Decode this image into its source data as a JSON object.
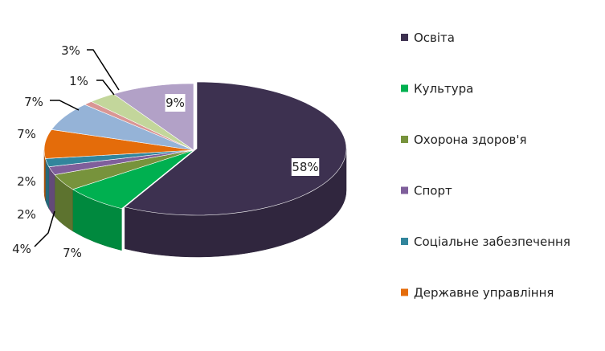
{
  "chart_data": {
    "type": "pie",
    "style": "3d-exploded",
    "legend_position": "right",
    "slices": [
      {
        "label": "Освіта",
        "value": 58,
        "value_label": "58%",
        "color": "#3d3150"
      },
      {
        "label": "",
        "value": 7,
        "value_label": "7%",
        "color": "#00b050"
      },
      {
        "label": "",
        "value": 4,
        "value_label": "4%",
        "color": "#77933c"
      },
      {
        "label": "",
        "value": 2,
        "value_label": "2%",
        "color": "#7f5f9b"
      },
      {
        "label": "",
        "value": 2,
        "value_label": "2%",
        "color": "#31859c"
      },
      {
        "label": "",
        "value": 7,
        "value_label": "7%",
        "color": "#e46c0a"
      },
      {
        "label": "",
        "value": 7,
        "value_label": "7%",
        "color": "#95b3d7"
      },
      {
        "label": "",
        "value": 1,
        "value_label": "1%",
        "color": "#d99694"
      },
      {
        "label": "",
        "value": 3,
        "value_label": "3%",
        "color": "#c3d69b"
      },
      {
        "label": "",
        "value": 9,
        "value_label": "9%",
        "color": "#b2a1c7"
      }
    ],
    "legend": [
      {
        "label": "Освіта",
        "color": "#3d3150"
      },
      {
        "label": "Культура",
        "color": "#00b050"
      },
      {
        "label": "Охорона здоров'я",
        "color": "#77933c"
      },
      {
        "label": "Спорт",
        "color": "#7f5f9b"
      },
      {
        "label": "Соціальне забезпечення",
        "color": "#31859c"
      },
      {
        "label": "Державне управління",
        "color": "#e46c0a"
      }
    ]
  }
}
